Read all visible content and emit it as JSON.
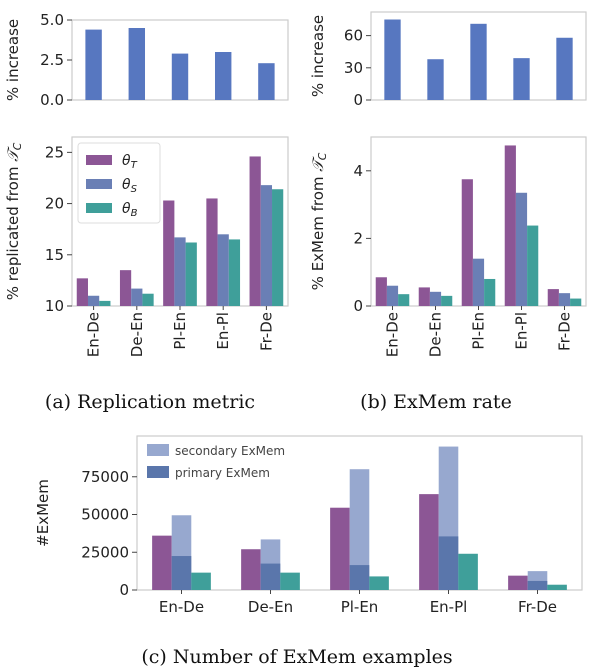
{
  "captions": {
    "a": "(a) Replication metric",
    "b": "(b) ExMem rate",
    "c": "(c) Number of ExMem examples"
  },
  "colors": {
    "theta_T": "#8c5695",
    "theta_S": "#6a7fb5",
    "theta_B": "#3f9f9a",
    "increase": "#5777c0",
    "secondary": "#97a8cf",
    "primary": "#5a76ab"
  },
  "chart_data": [
    {
      "id": "a_top",
      "type": "bar",
      "categories": [
        "En-De",
        "De-En",
        "Pl-En",
        "En-Pl",
        "Fr-De"
      ],
      "values": [
        4.4,
        4.5,
        2.9,
        3.0,
        2.3
      ],
      "ylabel": "% increase",
      "ylim": [
        0,
        5.0
      ],
      "yticks": [
        "0.0",
        "2.5",
        "5.0"
      ],
      "grid": false
    },
    {
      "id": "a_bottom",
      "type": "bar",
      "categories": [
        "En-De",
        "De-En",
        "Pl-En",
        "En-Pl",
        "Fr-De"
      ],
      "ylabel": "% replicated from 𝒯C",
      "ylim": [
        10,
        26.5
      ],
      "yticks": [
        "10",
        "15",
        "20",
        "25"
      ],
      "legend": "top-left",
      "series": [
        {
          "name": "θT",
          "values": [
            12.7,
            13.5,
            20.3,
            20.5,
            24.6
          ]
        },
        {
          "name": "θS",
          "values": [
            11.0,
            11.7,
            16.7,
            17.0,
            21.8
          ]
        },
        {
          "name": "θB",
          "values": [
            10.5,
            11.2,
            16.2,
            16.5,
            21.4
          ]
        }
      ]
    },
    {
      "id": "b_top",
      "type": "bar",
      "categories": [
        "En-De",
        "De-En",
        "Pl-En",
        "En-Pl",
        "Fr-De"
      ],
      "values": [
        75,
        38,
        71,
        39,
        58
      ],
      "ylabel": "% increase",
      "ylim": [
        0,
        82
      ],
      "yticks": [
        "0",
        "30",
        "60"
      ],
      "grid": false
    },
    {
      "id": "b_bottom",
      "type": "bar",
      "categories": [
        "En-De",
        "De-En",
        "Pl-En",
        "En-Pl",
        "Fr-De"
      ],
      "ylabel": "% ExMem from 𝒯C",
      "ylim": [
        0,
        5.0
      ],
      "yticks": [
        "0",
        "2",
        "4"
      ],
      "series": [
        {
          "name": "θT",
          "values": [
            0.85,
            0.55,
            3.75,
            4.75,
            0.5
          ]
        },
        {
          "name": "θS",
          "values": [
            0.6,
            0.42,
            1.4,
            3.35,
            0.38
          ]
        },
        {
          "name": "θB",
          "values": [
            0.35,
            0.3,
            0.8,
            2.38,
            0.22
          ]
        }
      ]
    },
    {
      "id": "c",
      "type": "bar",
      "categories": [
        "En-De",
        "De-En",
        "Pl-En",
        "En-Pl",
        "Fr-De"
      ],
      "ylabel": "#ExMem",
      "ylim": [
        0,
        102000
      ],
      "yticks": [
        "0",
        "25000",
        "50000",
        "75000"
      ],
      "legend": "top-left",
      "series": [
        {
          "name": "θT",
          "values": [
            36000,
            27000,
            54500,
            63500,
            9500
          ]
        },
        {
          "name": "secondary ExMem",
          "values": [
            49500,
            33500,
            80000,
            95000,
            12500
          ]
        },
        {
          "name": "primary ExMem",
          "values": [
            22500,
            17500,
            16500,
            35500,
            6000
          ]
        },
        {
          "name": "θB",
          "values": [
            11500,
            11500,
            9000,
            24000,
            3500
          ]
        }
      ]
    }
  ]
}
